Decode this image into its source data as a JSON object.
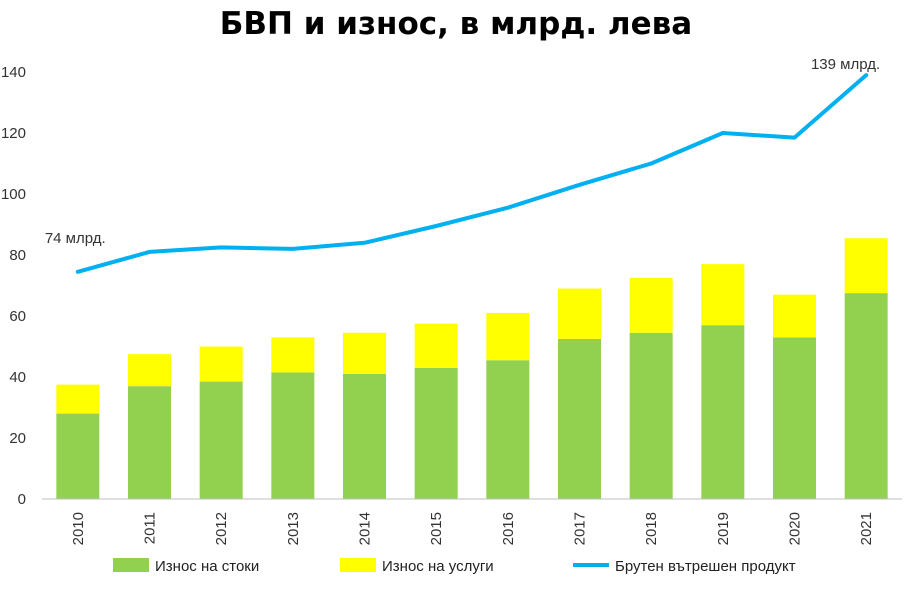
{
  "chart_data": {
    "type": "bar",
    "title": "БВП и износ, в млрд. лева",
    "categories": [
      "2010",
      "2011",
      "2012",
      "2013",
      "2014",
      "2015",
      "2016",
      "2017",
      "2018",
      "2019",
      "2020",
      "2021"
    ],
    "stacked": true,
    "series": [
      {
        "name": "Износ на стоки",
        "type": "bar",
        "color": "#92d050",
        "values": [
          28,
          37,
          38.5,
          41.5,
          41,
          43,
          45.5,
          52.5,
          54.5,
          57,
          53,
          67.5
        ]
      },
      {
        "name": "Износ на услуги",
        "type": "bar",
        "color": "#ffff00",
        "values": [
          9.5,
          10.5,
          11.5,
          11.5,
          13.5,
          14.5,
          15.5,
          16.5,
          18,
          20,
          14,
          18
        ]
      },
      {
        "name": "Брутен вътрешен продукт",
        "type": "line",
        "color": "#00b0f0",
        "values": [
          74.5,
          81,
          82.5,
          82,
          84,
          89.5,
          95.5,
          103,
          110,
          120,
          118.5,
          139
        ]
      }
    ],
    "yticks": [
      "0",
      "20",
      "40",
      "60",
      "80",
      "100",
      "120",
      "140"
    ],
    "ylim": [
      0,
      140
    ],
    "grid": false,
    "legend_position": "bottom",
    "annotations": [
      {
        "text": "74 млрд.",
        "series": "Брутен вътрешен продукт",
        "category": "2010"
      },
      {
        "text": "139  млрд.",
        "series": "Брутен вътрешен продукт",
        "category": "2021"
      }
    ]
  }
}
